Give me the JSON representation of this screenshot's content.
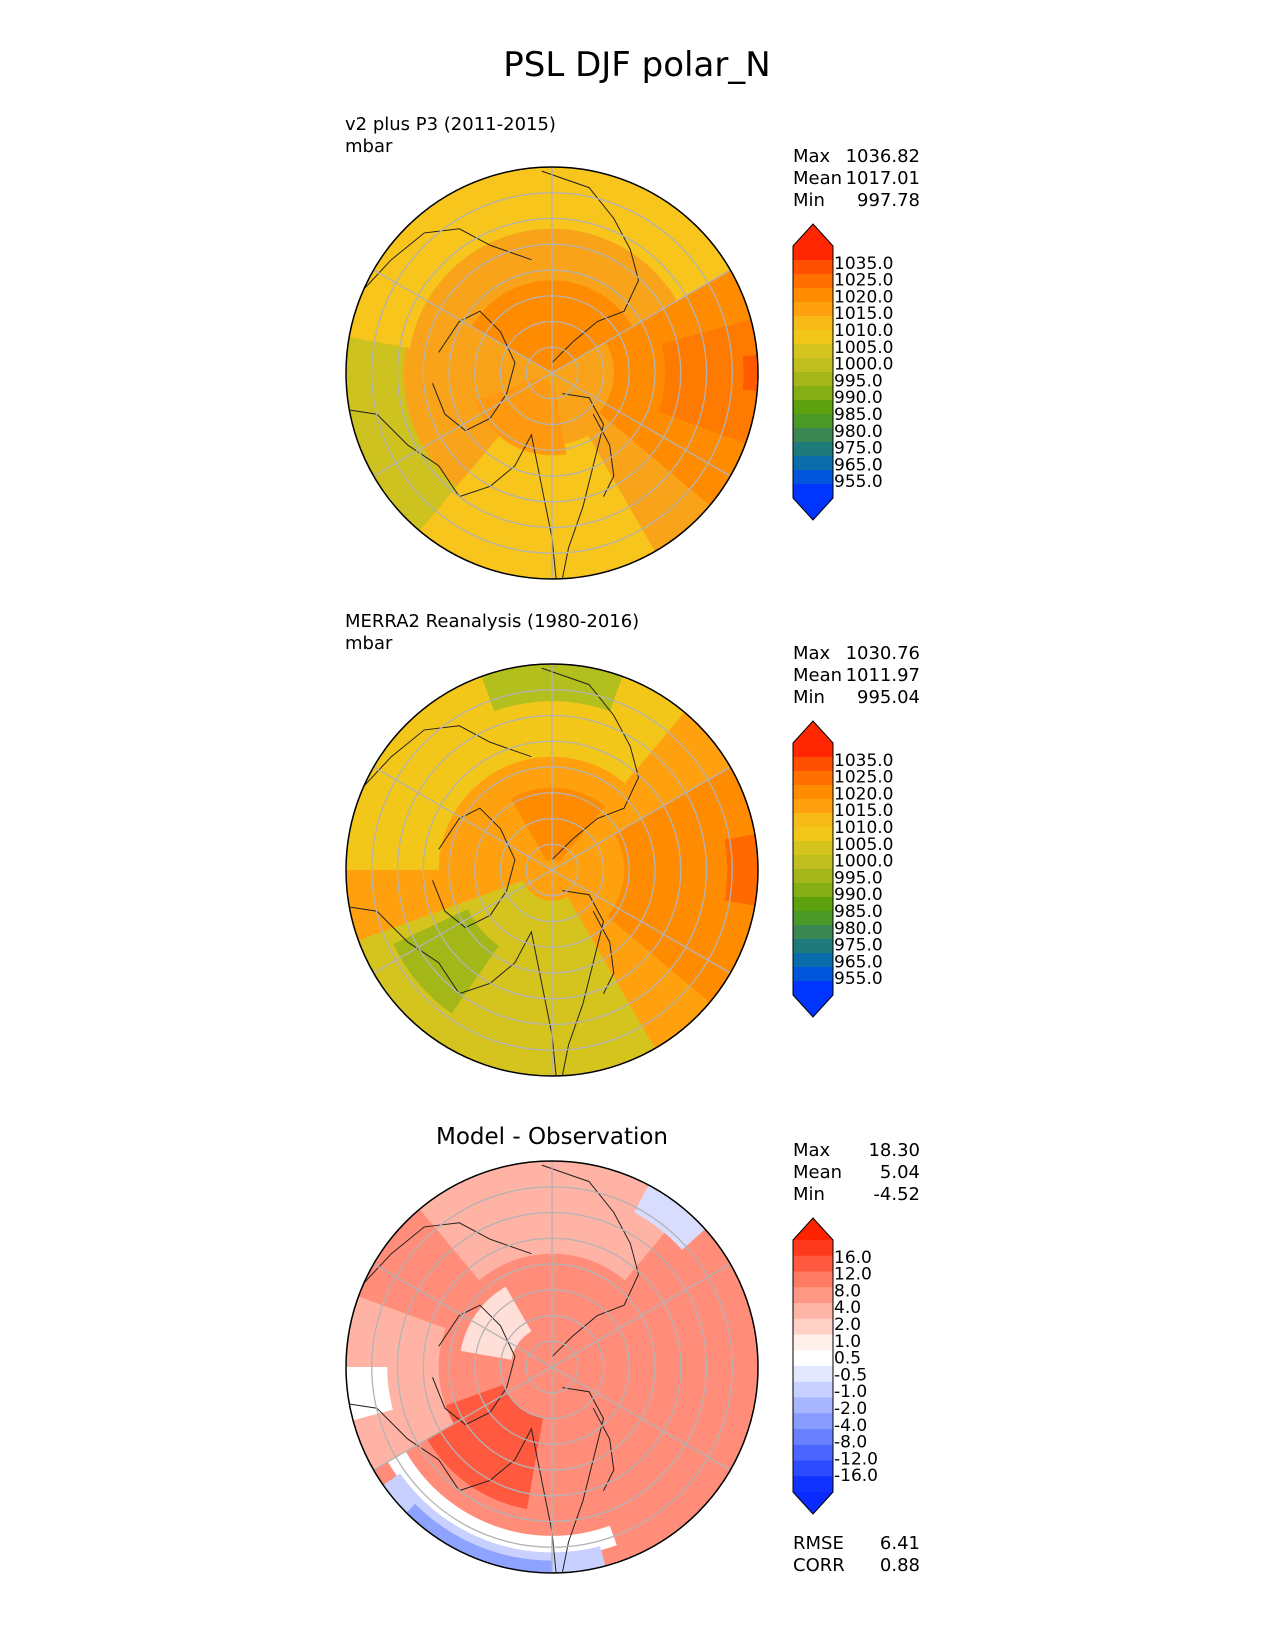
{
  "title": "PSL DJF polar_N",
  "panels": [
    {
      "id": "test",
      "name_line": "v2 plus P3 (2011-2015)",
      "units": "mbar",
      "centered_title": "",
      "stats": [
        {
          "label": "Max",
          "value": "1036.82"
        },
        {
          "label": "Mean",
          "value": "1017.01"
        },
        {
          "label": "Min",
          "value": "997.78"
        }
      ],
      "colorbar_ticks": [
        "1035.0",
        "1025.0",
        "1020.0",
        "1015.0",
        "1010.0",
        "1005.0",
        "1000.0",
        "995.0",
        "990.0",
        "985.0",
        "980.0",
        "975.0",
        "965.0",
        "955.0"
      ],
      "colorbar_colors": [
        "#ff2600",
        "#ff4f00",
        "#ff7000",
        "#ff8c00",
        "#ffa10e",
        "#f6bb16",
        "#f2c71a",
        "#d5c31e",
        "#bfc01f",
        "#a3b818",
        "#85ad14",
        "#5ea10e",
        "#4a9926",
        "#3b8753",
        "#1f7a7b",
        "#0a6caa",
        "#0055dc",
        "#0035ff"
      ],
      "cap_top": "#ff2600",
      "cap_bottom": "#0035ff",
      "map": {
        "background": "#f8a31a",
        "fields": [
          {
            "color": "#cdc21f",
            "shape": "band",
            "a1": -140,
            "a2": -60,
            "r1": 0.72,
            "r2": 1.0
          },
          {
            "color": "#aec21a",
            "shape": "band",
            "a1": -25,
            "a2": 25,
            "r1": 0.82,
            "r2": 1.0
          },
          {
            "color": "#f7c51c",
            "shape": "band",
            "a1": -80,
            "a2": 60,
            "r1": 0.7,
            "r2": 1.0
          },
          {
            "color": "#f7c51c",
            "shape": "band",
            "a1": 150,
            "a2": 220,
            "r1": 0.35,
            "r2": 1.0
          },
          {
            "color": "#ff8c00",
            "shape": "band",
            "a1": 60,
            "a2": 130,
            "r1": 0.3,
            "r2": 1.0
          },
          {
            "color": "#ff7a00",
            "shape": "band",
            "a1": 75,
            "a2": 110,
            "r1": 0.55,
            "r2": 1.0
          },
          {
            "color": "#ff8c00",
            "shape": "band",
            "a1": -60,
            "a2": 60,
            "r1": 0.0,
            "r2": 0.45
          },
          {
            "color": "#ff5a00",
            "shape": "band",
            "a1": 85,
            "a2": 95,
            "r1": 0.93,
            "r2": 1.0
          },
          {
            "color": "#ff9a10",
            "shape": "band",
            "a1": 170,
            "a2": 250,
            "r1": 0.05,
            "r2": 0.4
          }
        ]
      }
    },
    {
      "id": "ref",
      "name_line": "MERRA2 Reanalysis (1980-2016)",
      "units": "mbar",
      "centered_title": "",
      "stats": [
        {
          "label": "Max",
          "value": "1030.76"
        },
        {
          "label": "Mean",
          "value": "1011.97"
        },
        {
          "label": "Min",
          "value": "995.04"
        }
      ],
      "colorbar_ticks": [
        "1035.0",
        "1025.0",
        "1020.0",
        "1015.0",
        "1010.0",
        "1005.0",
        "1000.0",
        "995.0",
        "990.0",
        "985.0",
        "980.0",
        "975.0",
        "965.0",
        "955.0"
      ],
      "colorbar_colors": [
        "#ff2600",
        "#ff4f00",
        "#ff7000",
        "#ff8c00",
        "#ffa10e",
        "#f6bb16",
        "#f2c71a",
        "#d5c31e",
        "#bfc01f",
        "#a3b818",
        "#85ad14",
        "#5ea10e",
        "#4a9926",
        "#3b8753",
        "#1f7a7b",
        "#0a6caa",
        "#0055dc",
        "#0035ff"
      ],
      "cap_top": "#ff2600",
      "cap_bottom": "#0035ff",
      "map": {
        "background": "#ffa10e",
        "fields": [
          {
            "color": "#f2c71a",
            "shape": "band",
            "a1": -90,
            "a2": 40,
            "r1": 0.55,
            "r2": 1.0
          },
          {
            "color": "#b3bf1d",
            "shape": "band",
            "a1": -20,
            "a2": 20,
            "r1": 0.82,
            "r2": 1.0
          },
          {
            "color": "#d5c31e",
            "shape": "band",
            "a1": 150,
            "a2": 250,
            "r1": 0.15,
            "r2": 1.0
          },
          {
            "color": "#a3b818",
            "shape": "band",
            "a1": 215,
            "a2": 245,
            "r1": 0.45,
            "r2": 0.85
          },
          {
            "color": "#ff8c00",
            "shape": "band",
            "a1": 60,
            "a2": 130,
            "r1": 0.35,
            "r2": 1.0
          },
          {
            "color": "#ff6a00",
            "shape": "band",
            "a1": 80,
            "a2": 100,
            "r1": 0.85,
            "r2": 1.0
          },
          {
            "color": "#ff8c00",
            "shape": "band",
            "a1": -30,
            "a2": 40,
            "r1": 0.05,
            "r2": 0.4
          }
        ]
      }
    },
    {
      "id": "diff",
      "name_line": "",
      "units": "",
      "centered_title": "Model - Observation",
      "stats": [
        {
          "label": "Max",
          "value": "18.30"
        },
        {
          "label": "Mean",
          "value": "5.04"
        },
        {
          "label": "Min",
          "value": "-4.52"
        }
      ],
      "colorbar_ticks": [
        "16.0",
        "12.0",
        "8.0",
        "4.0",
        "2.0",
        "1.0",
        "0.5",
        "-0.5",
        "-1.0",
        "-2.0",
        "-4.0",
        "-8.0",
        "-12.0",
        "-16.0"
      ],
      "colorbar_colors": [
        "#ff3a1c",
        "#ff5a3f",
        "#ff7a62",
        "#ff9784",
        "#ffb5a6",
        "#ffd1c7",
        "#fff0ec",
        "#ffffff",
        "#e4e8ff",
        "#c8d0ff",
        "#a8b6ff",
        "#889bff",
        "#6a80ff",
        "#4b66ff",
        "#2c4bff",
        "#1133ff"
      ],
      "cap_top": "#ff2200",
      "cap_bottom": "#0a2bff",
      "map": {
        "background": "#ff8d7a",
        "fields": [
          {
            "color": "#ffb3a4",
            "shape": "band",
            "a1": -40,
            "a2": 40,
            "r1": 0.55,
            "r2": 1.0
          },
          {
            "color": "#ffe0d8",
            "shape": "band",
            "a1": -80,
            "a2": -30,
            "r1": 0.2,
            "r2": 0.45
          },
          {
            "color": "#ff5a3f",
            "shape": "band",
            "a1": 190,
            "a2": 250,
            "r1": 0.25,
            "r2": 0.7
          },
          {
            "color": "#ffb3a4",
            "shape": "band",
            "a1": 240,
            "a2": 290,
            "r1": 0.55,
            "r2": 1.0
          },
          {
            "color": "#ffffff",
            "shape": "band",
            "a1": 160,
            "a2": 240,
            "r1": 0.82,
            "r2": 0.92
          },
          {
            "color": "#c8d0ff",
            "shape": "band",
            "a1": 165,
            "a2": 235,
            "r1": 0.9,
            "r2": 1.0
          },
          {
            "color": "#8ea2ff",
            "shape": "band",
            "a1": 180,
            "a2": 225,
            "r1": 0.94,
            "r2": 1.0
          },
          {
            "color": "#d8ddff",
            "shape": "band",
            "a1": 28,
            "a2": 48,
            "r1": 0.85,
            "r2": 1.0
          },
          {
            "color": "#ffffff",
            "shape": "band",
            "a1": 255,
            "a2": 270,
            "r1": 0.8,
            "r2": 1.0
          }
        ]
      }
    }
  ],
  "rmse": {
    "label": "RMSE",
    "value": "6.41"
  },
  "corr": {
    "label": "CORR",
    "value": "0.88"
  }
}
